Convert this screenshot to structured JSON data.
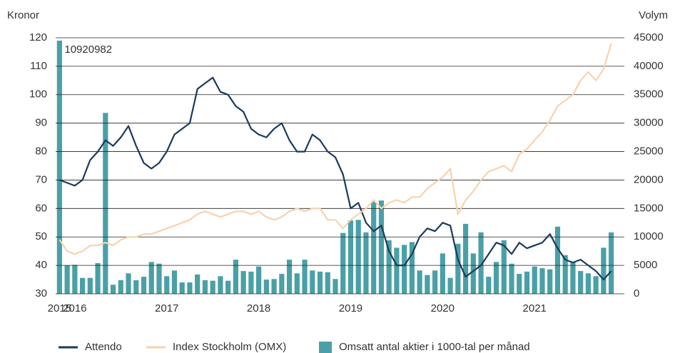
{
  "chart_data": {
    "type": "bar_line",
    "y_label": "Kronor",
    "y2_label": "Volym",
    "categories": [
      null,
      null,
      null,
      null,
      null,
      null,
      null,
      null,
      null,
      null,
      null,
      null,
      null,
      null,
      null,
      null,
      null,
      null,
      null,
      null,
      null,
      null,
      null,
      null,
      null,
      null,
      null,
      null,
      null,
      null,
      null,
      null,
      null,
      null,
      null,
      null,
      null,
      null,
      null,
      null,
      null,
      null,
      null,
      null,
      null,
      null,
      null,
      null,
      null,
      null,
      null,
      null,
      null,
      null,
      null,
      null,
      null,
      null,
      null,
      null,
      null,
      null,
      null,
      null,
      null,
      null,
      null,
      null,
      null,
      null,
      null,
      null,
      null
    ],
    "xticks": [
      {
        "value": 0,
        "label": "2015"
      },
      {
        "value": 2,
        "label": "2016"
      },
      {
        "value": 14,
        "label": "2017"
      },
      {
        "value": 26,
        "label": "2018"
      },
      {
        "value": 38,
        "label": "2019"
      },
      {
        "value": 50,
        "label": "2020"
      },
      {
        "value": 62,
        "label": "2021"
      }
    ],
    "ylim": [
      30,
      120
    ],
    "yticks": [
      30,
      40,
      50,
      60,
      70,
      80,
      90,
      100,
      110,
      120
    ],
    "y2lim": [
      0,
      45000
    ],
    "y2ticks": [
      0,
      5000,
      10000,
      15000,
      20000,
      25000,
      30000,
      35000,
      40000,
      45000
    ],
    "grid": true,
    "annotations": [
      {
        "text": "10920982",
        "index": 0
      }
    ],
    "series": [
      {
        "name": "Attendo",
        "type": "line",
        "color": "#1b3a5c",
        "values": [
          70,
          69,
          68,
          70,
          77,
          80,
          84,
          82,
          85,
          89,
          82,
          76,
          74,
          76,
          80,
          86,
          88,
          90,
          102,
          104,
          106,
          101,
          100,
          96,
          94,
          88,
          86,
          85,
          88,
          90,
          84,
          80,
          80,
          86,
          84,
          80,
          78,
          72,
          60,
          62,
          55,
          52,
          54,
          45,
          40,
          40,
          44,
          50,
          53,
          52,
          55,
          54,
          42,
          36,
          38,
          40,
          44,
          48,
          47,
          44,
          48,
          46,
          47,
          48,
          51,
          46,
          42,
          41,
          42,
          40,
          38,
          35,
          38
        ]
      },
      {
        "name": "Index Stockholm (OMX)",
        "type": "line",
        "color": "#f7d3ae",
        "values": [
          49,
          45,
          44,
          45,
          47,
          47,
          48,
          47,
          49,
          50,
          50,
          51,
          51,
          52,
          53,
          54,
          55,
          56,
          58,
          59,
          58,
          57,
          58,
          59,
          59,
          58,
          59,
          57,
          56,
          57,
          59,
          60,
          59,
          60,
          60,
          56,
          56,
          53,
          56,
          58,
          60,
          63,
          60,
          62,
          63,
          62,
          64,
          64,
          67,
          69,
          71,
          74,
          58,
          63,
          66,
          70,
          73,
          74,
          75,
          73,
          79,
          81,
          84,
          87,
          91,
          96,
          98,
          100,
          105,
          108,
          105,
          109,
          118
        ]
      },
      {
        "name": "Omsatt antal aktier i 1000-tal per månad",
        "type": "bar",
        "axis": "y2",
        "color": "#4aa0a6",
        "values": [
          44500,
          5000,
          5100,
          2800,
          2800,
          5400,
          31800,
          1600,
          2400,
          3600,
          2400,
          3000,
          5600,
          5300,
          3100,
          4100,
          2000,
          2000,
          3400,
          2400,
          2300,
          3100,
          2300,
          6000,
          4000,
          3900,
          4800,
          2500,
          2600,
          3500,
          6000,
          3600,
          6000,
          4100,
          3900,
          3800,
          2600,
          10700,
          12900,
          13000,
          10800,
          16200,
          16400,
          9400,
          8100,
          8600,
          9100,
          4100,
          3300,
          4100,
          7100,
          2800,
          8800,
          12300,
          7100,
          10800,
          3000,
          5600,
          9400,
          5300,
          3500,
          3900,
          4800,
          4500,
          4300,
          11800,
          6800,
          5500,
          4000,
          3600,
          3100,
          8100,
          10800
        ]
      }
    ]
  }
}
